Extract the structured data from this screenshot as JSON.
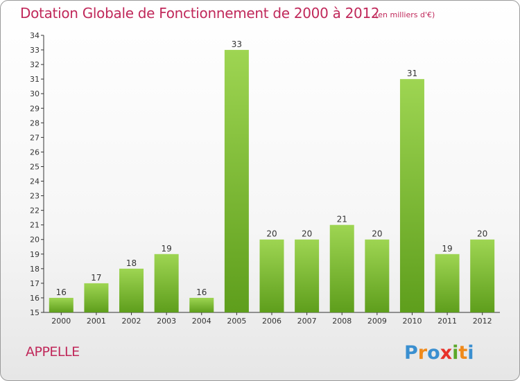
{
  "header": {
    "title": "Dotation Globale de Fonctionnement de 2000 à 2012",
    "unit": "(en milliers d'€)"
  },
  "footer": {
    "commune": "APPELLE",
    "logo_text": "Proxiti"
  },
  "colors": {
    "accent": "#c0285a",
    "bar_light": "#9ed552",
    "bar_dark": "#5e9e1c"
  },
  "chart_data": {
    "type": "bar",
    "title": "Dotation Globale de Fonctionnement de 2000 à 2012",
    "subtitle": "(en milliers d'€)",
    "xlabel": "",
    "ylabel": "",
    "categories": [
      "2000",
      "2001",
      "2002",
      "2003",
      "2004",
      "2005",
      "2006",
      "2007",
      "2008",
      "2009",
      "2010",
      "2011",
      "2012"
    ],
    "values": [
      16,
      17,
      18,
      19,
      16,
      33,
      20,
      20,
      21,
      20,
      31,
      19,
      20
    ],
    "ylim": [
      15,
      34
    ],
    "yticks": [
      15,
      16,
      17,
      18,
      19,
      20,
      21,
      22,
      23,
      24,
      25,
      26,
      27,
      28,
      29,
      30,
      31,
      32,
      33,
      34
    ],
    "grid": false,
    "data_labels": true
  }
}
